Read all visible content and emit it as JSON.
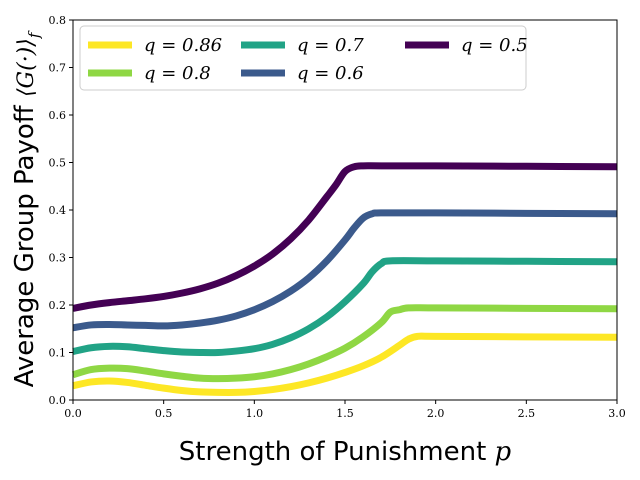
{
  "chart_data": {
    "type": "line",
    "xlabel": "Strength of Punishment",
    "xlabel_symbol": "p",
    "ylabel": "Average Group Payoff",
    "ylabel_symbol": "⟨G(·)⟩",
    "ylabel_subscript": "f",
    "xlim": [
      0,
      3.0
    ],
    "ylim": [
      0,
      0.8
    ],
    "xticks": [
      "0.0",
      "0.5",
      "1.0",
      "1.5",
      "2.0",
      "2.5",
      "3.0"
    ],
    "yticks": [
      "0.0",
      "0.1",
      "0.2",
      "0.3",
      "0.4",
      "0.5",
      "0.6",
      "0.7",
      "0.8"
    ],
    "legend_position": "top-left",
    "series": [
      {
        "name": "q = 0.86",
        "color": "#fde725",
        "x": [
          0,
          0.1,
          0.2,
          0.3,
          0.4,
          0.5,
          0.6,
          0.7,
          0.8,
          0.9,
          1.0,
          1.1,
          1.2,
          1.3,
          1.4,
          1.5,
          1.6,
          1.7,
          1.8,
          1.85,
          1.9,
          2.0,
          2.5,
          3.0
        ],
        "y": [
          0.03,
          0.038,
          0.04,
          0.037,
          0.031,
          0.025,
          0.02,
          0.017,
          0.016,
          0.016,
          0.018,
          0.022,
          0.028,
          0.036,
          0.046,
          0.058,
          0.072,
          0.09,
          0.115,
          0.128,
          0.134,
          0.134,
          0.133,
          0.132
        ]
      },
      {
        "name": "q = 0.8",
        "color": "#8fd744",
        "x": [
          0,
          0.1,
          0.2,
          0.3,
          0.4,
          0.5,
          0.6,
          0.7,
          0.8,
          0.9,
          1.0,
          1.1,
          1.2,
          1.3,
          1.4,
          1.5,
          1.6,
          1.7,
          1.75,
          1.8,
          1.85,
          2.0,
          2.5,
          3.0
        ],
        "y": [
          0.053,
          0.064,
          0.067,
          0.066,
          0.061,
          0.055,
          0.05,
          0.046,
          0.045,
          0.046,
          0.049,
          0.055,
          0.064,
          0.076,
          0.091,
          0.109,
          0.133,
          0.163,
          0.185,
          0.19,
          0.194,
          0.194,
          0.193,
          0.192
        ]
      },
      {
        "name": "q = 0.7",
        "color": "#21a386",
        "x": [
          0,
          0.1,
          0.2,
          0.3,
          0.4,
          0.5,
          0.6,
          0.7,
          0.8,
          0.9,
          1.0,
          1.1,
          1.2,
          1.3,
          1.4,
          1.5,
          1.6,
          1.65,
          1.7,
          1.75,
          2.0,
          2.5,
          3.0
        ],
        "y": [
          0.102,
          0.11,
          0.113,
          0.112,
          0.108,
          0.104,
          0.101,
          0.1,
          0.1,
          0.103,
          0.108,
          0.117,
          0.131,
          0.15,
          0.175,
          0.207,
          0.245,
          0.27,
          0.287,
          0.293,
          0.293,
          0.292,
          0.291
        ]
      },
      {
        "name": "q = 0.6",
        "color": "#3b5a8c",
        "x": [
          0,
          0.1,
          0.2,
          0.3,
          0.4,
          0.5,
          0.6,
          0.7,
          0.8,
          0.9,
          1.0,
          1.1,
          1.2,
          1.3,
          1.4,
          1.5,
          1.55,
          1.6,
          1.65,
          1.7,
          2.0,
          2.5,
          3.0
        ],
        "y": [
          0.152,
          0.158,
          0.159,
          0.158,
          0.157,
          0.156,
          0.158,
          0.162,
          0.168,
          0.177,
          0.19,
          0.207,
          0.229,
          0.257,
          0.293,
          0.337,
          0.362,
          0.383,
          0.392,
          0.394,
          0.394,
          0.393,
          0.392
        ]
      },
      {
        "name": "q = 0.5",
        "color": "#440154",
        "x": [
          0,
          0.1,
          0.2,
          0.3,
          0.4,
          0.5,
          0.6,
          0.7,
          0.8,
          0.9,
          1.0,
          1.1,
          1.2,
          1.3,
          1.4,
          1.45,
          1.5,
          1.55,
          1.6,
          1.7,
          2.0,
          2.5,
          3.0
        ],
        "y": [
          0.193,
          0.2,
          0.205,
          0.209,
          0.213,
          0.218,
          0.225,
          0.234,
          0.246,
          0.262,
          0.282,
          0.307,
          0.339,
          0.379,
          0.428,
          0.453,
          0.481,
          0.491,
          0.493,
          0.493,
          0.493,
          0.492,
          0.491
        ]
      }
    ]
  }
}
